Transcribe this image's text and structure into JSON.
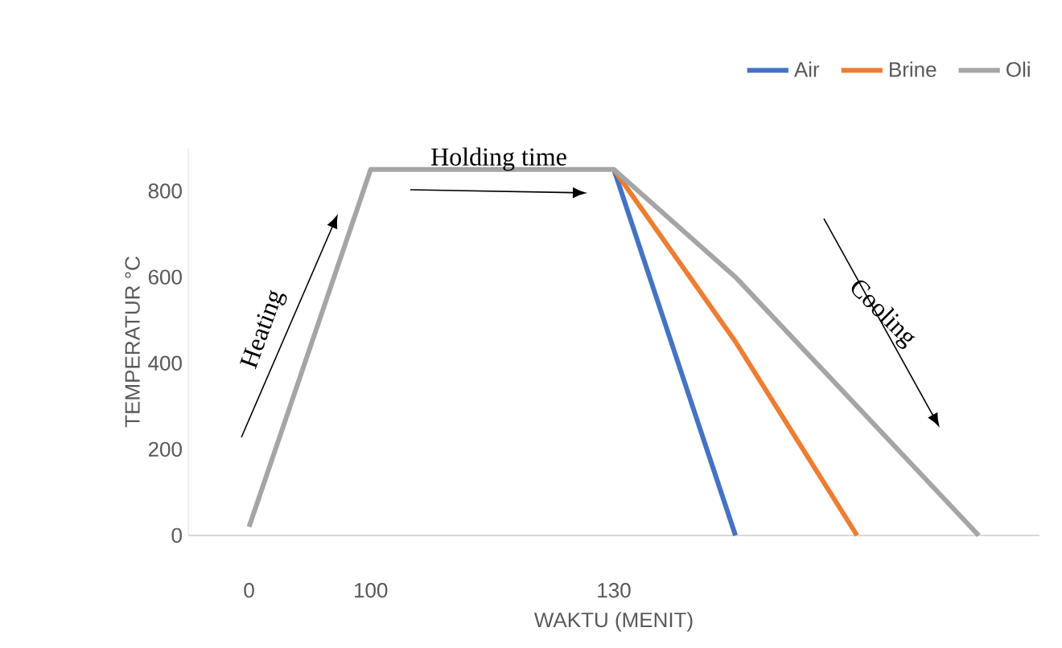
{
  "chart_data": {
    "type": "line",
    "xlabel": "WAKTU (MENIT)",
    "ylabel": "TEMPERATUR °C",
    "categories": [
      "0",
      "100",
      null,
      "130",
      null,
      null,
      null
    ],
    "series": [
      {
        "name": "Air",
        "color": "#4472c4",
        "values": [
          null,
          null,
          null,
          850,
          0,
          null,
          null
        ]
      },
      {
        "name": "Brine",
        "color": "#ed7d31",
        "values": [
          null,
          null,
          null,
          850,
          450,
          0,
          null
        ]
      },
      {
        "name": "Oli",
        "color": "#a5a5a5",
        "values": [
          20,
          850,
          850,
          850,
          600,
          300,
          0
        ]
      }
    ],
    "ylim": [
      0,
      900
    ],
    "yticks": [
      0,
      200,
      400,
      600,
      800
    ],
    "legend": "top right",
    "marker": "none",
    "line_style": "solid",
    "annotations": [
      "Heating",
      "Holding time",
      "Cooling"
    ]
  }
}
